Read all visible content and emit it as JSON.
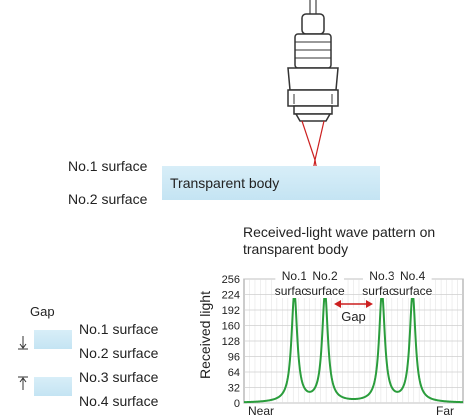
{
  "top": {
    "surface1": "No.1 surface",
    "surface2": "No.2 surface",
    "body": "Transparent body"
  },
  "chart_title": "Received-light wave pattern on transparent body",
  "legend": {
    "gap": "Gap",
    "s1": "No.1 surface",
    "s2": "No.2 surface",
    "s3": "No.3 surface",
    "s4": "No.4 surface"
  },
  "chart_data": {
    "type": "line",
    "ylabel": "Received light",
    "xlabel_left": "Near",
    "xlabel_right": "Far",
    "yticks": [
      0,
      32,
      64,
      96,
      128,
      160,
      192,
      224,
      256
    ],
    "ylim": [
      0,
      256
    ],
    "xlim": [
      0,
      100
    ],
    "peaks": [
      {
        "label1": "No.1",
        "label2": "surface",
        "x": 23,
        "value": 224
      },
      {
        "label1": "No.2",
        "label2": "surface",
        "x": 37,
        "value": 224
      },
      {
        "label1": "No.3",
        "label2": "surface",
        "x": 63,
        "value": 224
      },
      {
        "label1": "No.4",
        "label2": "surface",
        "x": 77,
        "value": 224
      }
    ],
    "gap_label": "Gap",
    "grid": true,
    "line_color": "#2a9d3c"
  }
}
